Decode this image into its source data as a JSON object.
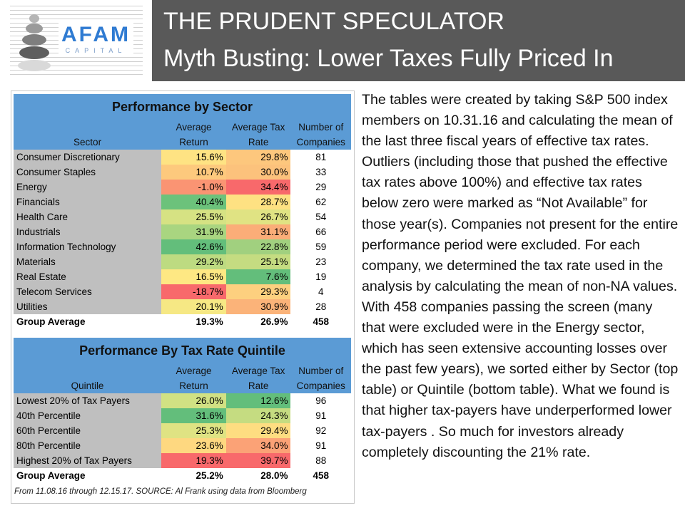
{
  "header": {
    "title_line1": "THE PRUDENT SPECULATOR",
    "title_line2": "Myth Busting: Lower Taxes Fully Priced In",
    "logo_text": "AFAM",
    "logo_sub": "CAPITAL",
    "background_color": "#595959"
  },
  "sector_table": {
    "title": "Performance by Sector",
    "headers": [
      {
        "top": "",
        "bottom": "Sector"
      },
      {
        "top": "Average",
        "bottom": "Return"
      },
      {
        "top": "Average Tax",
        "bottom": "Rate"
      },
      {
        "top": "Number of",
        "bottom": "Companies"
      }
    ],
    "rows": [
      {
        "name": "Consumer Discretionary",
        "ret": "15.6%",
        "tax": "29.8%",
        "count": "81",
        "ret_color": "#fee383",
        "tax_color": "#fdc77d"
      },
      {
        "name": "Consumer Staples",
        "ret": "10.7%",
        "tax": "30.0%",
        "count": "33",
        "ret_color": "#fdc97d",
        "tax_color": "#fcc27c"
      },
      {
        "name": "Energy",
        "ret": "-1.0%",
        "tax": "34.4%",
        "count": "29",
        "ret_color": "#fa9473",
        "tax_color": "#f8696b"
      },
      {
        "name": "Financials",
        "ret": "40.4%",
        "tax": "28.7%",
        "count": "62",
        "ret_color": "#6cc27b",
        "tax_color": "#fee182"
      },
      {
        "name": "Health Care",
        "ret": "25.5%",
        "tax": "26.7%",
        "count": "54",
        "ret_color": "#d6e283",
        "tax_color": "#e0e383"
      },
      {
        "name": "Industrials",
        "ret": "31.9%",
        "tax": "31.1%",
        "count": "66",
        "ret_color": "#a9d580",
        "tax_color": "#fbad78"
      },
      {
        "name": "Information Technology",
        "ret": "42.6%",
        "tax": "22.8%",
        "count": "59",
        "ret_color": "#63be7b",
        "tax_color": "#a1d07f"
      },
      {
        "name": "Materials",
        "ret": "29.2%",
        "tax": "25.1%",
        "count": "23",
        "ret_color": "#bddb81",
        "tax_color": "#c5dc81"
      },
      {
        "name": "Real Estate",
        "ret": "16.5%",
        "tax": "7.6%",
        "count": "19",
        "ret_color": "#fee883",
        "tax_color": "#63be7b"
      },
      {
        "name": "Telecom Services",
        "ret": "-18.7%",
        "tax": "29.3%",
        "count": "4",
        "ret_color": "#f8696b",
        "tax_color": "#fdd07f"
      },
      {
        "name": "Utilities",
        "ret": "20.1%",
        "tax": "30.9%",
        "count": "28",
        "ret_color": "#f6e884",
        "tax_color": "#fbb379"
      }
    ],
    "average": {
      "name": "Group Average",
      "ret": "19.3%",
      "tax": "26.9%",
      "count": "458"
    }
  },
  "quintile_table": {
    "title": "Performance By Tax Rate Quintile",
    "headers": [
      {
        "top": "",
        "bottom": "Quintile"
      },
      {
        "top": "Average",
        "bottom": "Return"
      },
      {
        "top": "Average Tax",
        "bottom": "Rate"
      },
      {
        "top": "Number of",
        "bottom": "Companies"
      }
    ],
    "rows": [
      {
        "name": "Lowest 20% of Tax Payers",
        "ret": "26.0%",
        "tax": "12.6%",
        "count": "96",
        "ret_color": "#d1e183",
        "tax_color": "#63be7b"
      },
      {
        "name": "40th Percentile",
        "ret": "31.6%",
        "tax": "24.3%",
        "count": "91",
        "ret_color": "#63be7b",
        "tax_color": "#c5dc81"
      },
      {
        "name": "60th Percentile",
        "ret": "25.3%",
        "tax": "29.4%",
        "count": "92",
        "ret_color": "#dfe383",
        "tax_color": "#fedd81"
      },
      {
        "name": "80th Percentile",
        "ret": "23.6%",
        "tax": "34.0%",
        "count": "91",
        "ret_color": "#fed880",
        "tax_color": "#fba276"
      },
      {
        "name": "Highest 20% of Tax Payers",
        "ret": "19.3%",
        "tax": "39.7%",
        "count": "88",
        "ret_color": "#f8696b",
        "tax_color": "#f8696b"
      }
    ],
    "average": {
      "name": "Group Average",
      "ret": "25.2%",
      "tax": "28.0%",
      "count": "458"
    }
  },
  "source_note": "From 11.08.16 through 12.15.17. SOURCE: Al Frank using data from Bloomberg",
  "body_text": "The tables were created by taking S&P 500 index members on 10.31.16 and calculating the mean of the last three fiscal years of effective tax rates. Outliers (including those that pushed the effective tax rates above 100%) and effective tax rates below zero were marked as “Not Available” for those year(s). Companies not present for the entire performance period were excluded. For each company, we determined the tax rate used in the analysis by calculating the mean of non-NA values. With 458 companies passing the screen (many that were excluded were in the Energy sector, which has seen extensive accounting losses over the past few years), we sorted either by Sector (top table) or Quintile (bottom table). What we found is that higher tax-payers have underperformed lower tax-payers . So much for investors already completely discounting the 21% rate."
}
